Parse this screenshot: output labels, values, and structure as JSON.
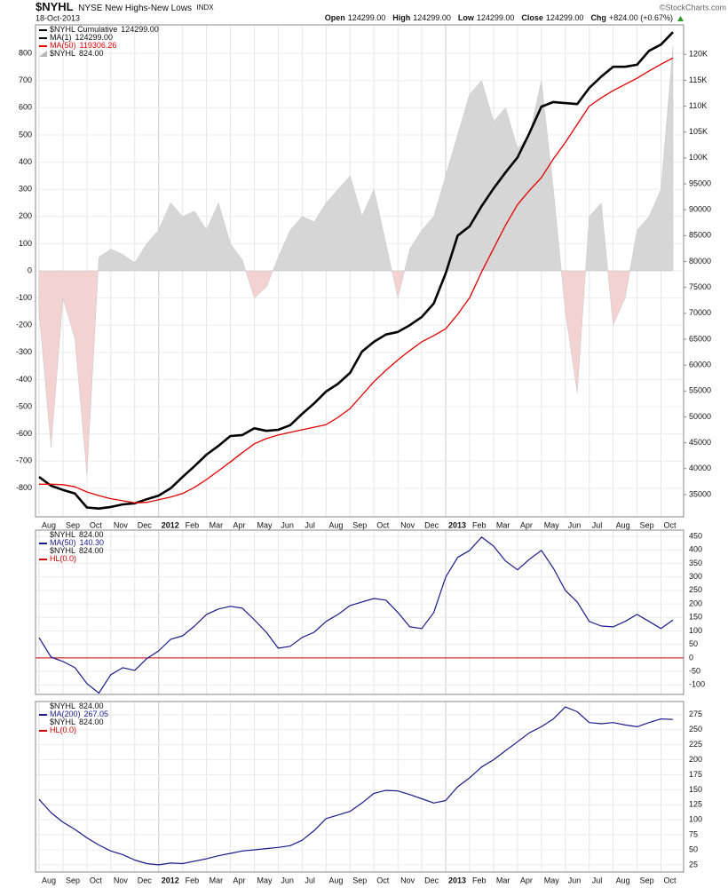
{
  "header": {
    "symbol": "$NYHL",
    "name": "NYSE New Highs-New Lows",
    "exchange": "INDX",
    "date": "18-Oct-2013",
    "watermark": "©StockCharts.com",
    "quote": [
      {
        "label": "Open",
        "value": "124299.00"
      },
      {
        "label": "High",
        "value": "124299.00"
      },
      {
        "label": "Low",
        "value": "124299.00"
      },
      {
        "label": "Close",
        "value": "124299.00"
      },
      {
        "label": "Chg",
        "value": "+824.00 (+0.67%)"
      }
    ]
  },
  "chart_data": [
    {
      "type": "line",
      "title": "$NYHL  Cumulative",
      "title_value": "124299.00",
      "categories": [
        "Aug",
        null,
        "Sep",
        null,
        "Oct",
        null,
        "Nov",
        null,
        "Dec",
        null,
        "2012",
        null,
        "Feb",
        null,
        "Mar",
        null,
        "Apr",
        null,
        "May",
        null,
        "Jun",
        null,
        "Jul",
        null,
        "Aug",
        null,
        "Sep",
        null,
        "Oct",
        null,
        "Nov",
        null,
        "Dec",
        null,
        "2013",
        null,
        "Feb",
        null,
        "Mar",
        null,
        "Apr",
        null,
        "May",
        null,
        "Jun",
        null,
        "Jul",
        null,
        "Aug",
        null,
        "Sep",
        null,
        "Oct",
        null
      ],
      "ylim": [
        -905,
        905
      ],
      "yticks": [
        -800,
        -700,
        -600,
        -500,
        -400,
        -300,
        -200,
        -100,
        0,
        100,
        200,
        300,
        400,
        500,
        600,
        700,
        800
      ],
      "y2lim": [
        30700,
        125700
      ],
      "y2ticks": [
        35000,
        40000,
        45000,
        50000,
        55000,
        60000,
        65000,
        70000,
        75000,
        80000,
        85000,
        90000,
        95000,
        {
          "value": 100000,
          "label": "100K"
        },
        {
          "value": 105000,
          "label": "105K"
        },
        {
          "value": 110000,
          "label": "110K"
        },
        {
          "value": 115000,
          "label": "115K"
        },
        {
          "value": 120000,
          "label": "120K"
        }
      ],
      "grid": true,
      "series": [
        {
          "name": "MA(1)",
          "last": "124299.00",
          "color": "#000000",
          "axis": "y2",
          "width": 2.6,
          "values": [
            38400,
            36700,
            35900,
            35200,
            32500,
            32300,
            32600,
            33100,
            33300,
            34100,
            34800,
            36200,
            38400,
            40500,
            42700,
            44400,
            46300,
            46500,
            47800,
            47300,
            47500,
            48400,
            50600,
            52600,
            54900,
            56400,
            58500,
            62600,
            64500,
            65900,
            66400,
            67700,
            69300,
            71900,
            77700,
            85000,
            86800,
            90700,
            94100,
            97200,
            100100,
            104800,
            109900,
            110800,
            110600,
            110400,
            113500,
            115700,
            117600,
            117600,
            118000,
            120700,
            121900,
            124299
          ]
        },
        {
          "name": "MA(50)",
          "last": "119306.26",
          "color": "#e00000",
          "axis": "y2",
          "width": 1.3,
          "values": [
            37000,
            37000,
            36900,
            36500,
            35500,
            34800,
            34200,
            33800,
            33400,
            33500,
            34000,
            34500,
            35200,
            36400,
            37900,
            39600,
            41300,
            43100,
            44800,
            45800,
            46500,
            47000,
            47500,
            48000,
            48500,
            49900,
            51600,
            54200,
            56800,
            59000,
            61000,
            62800,
            64500,
            65700,
            67000,
            69800,
            73000,
            78000,
            82500,
            87000,
            91000,
            93700,
            96200,
            99800,
            103000,
            106500,
            110000,
            111600,
            113000,
            114200,
            115400,
            116800,
            118100,
            119306.26
          ]
        },
        {
          "name": "$NYHL",
          "last": "824.00",
          "type": "area",
          "color": "#d6d6d6",
          "negative_color": "#f3d2d2",
          "values": [
            -150,
            -650,
            -100,
            -250,
            -750,
            50,
            80,
            60,
            30,
            100,
            150,
            250,
            200,
            220,
            150,
            250,
            100,
            40,
            -100,
            -60,
            50,
            150,
            200,
            180,
            250,
            300,
            350,
            200,
            300,
            100,
            -100,
            80,
            150,
            200,
            350,
            500,
            650,
            700,
            550,
            600,
            450,
            500,
            700,
            300,
            -150,
            -450,
            200,
            250,
            -200,
            -100,
            150,
            200,
            300,
            824
          ]
        }
      ]
    },
    {
      "type": "line",
      "title": "$NYHL",
      "title_value": "824.00",
      "ylim": [
        -135,
        473
      ],
      "yticks": [
        -100,
        -50,
        0,
        50,
        100,
        150,
        200,
        250,
        300,
        350,
        400,
        450
      ],
      "grid": true,
      "series": [
        {
          "name": "MA(50)",
          "last": "140.30",
          "color": "#1a1a8c",
          "width": 1.2,
          "values": [
            75,
            3,
            -13,
            -36,
            -95,
            -130,
            -62,
            -36,
            -46,
            -3,
            26,
            69,
            82,
            118,
            161,
            181,
            191,
            184,
            141,
            95,
            36,
            43,
            76,
            95,
            135,
            161,
            194,
            207,
            220,
            214,
            168,
            115,
            109,
            168,
            299,
            372,
            398,
            447,
            414,
            359,
            326,
            365,
            398,
            332,
            250,
            207,
            135,
            118,
            115,
            135,
            161,
            135,
            109,
            140.3
          ]
        }
      ],
      "overlay": {
        "name": "$NYHL",
        "last": "824.00"
      },
      "hline": {
        "name": "HL(0.0)",
        "value": 0,
        "color": "#cc0000"
      }
    },
    {
      "type": "line",
      "title": "$NYHL",
      "title_value": "824.00",
      "categories": [
        "Aug",
        null,
        "Sep",
        null,
        "Oct",
        null,
        "Nov",
        null,
        "Dec",
        null,
        "2012",
        null,
        "Feb",
        null,
        "Mar",
        null,
        "Apr",
        null,
        "May",
        null,
        "Jun",
        null,
        "Jul",
        null,
        "Aug",
        null,
        "Sep",
        null,
        "Oct",
        null,
        "Nov",
        null,
        "Dec",
        null,
        "2013",
        null,
        "Feb",
        null,
        "Mar",
        null,
        "Apr",
        null,
        "May",
        null,
        "Jun",
        null,
        "Jul",
        null,
        "Aug",
        null,
        "Sep",
        null,
        "Oct",
        null
      ],
      "ylim": [
        13,
        297
      ],
      "yticks": [
        25,
        50,
        75,
        100,
        125,
        150,
        175,
        200,
        225,
        250,
        275
      ],
      "grid": true,
      "series": [
        {
          "name": "MA(200)",
          "last": "267.05",
          "color": "#1a1a8c",
          "width": 1.2,
          "values": [
            134,
            112,
            96,
            84,
            70,
            58,
            48,
            42,
            33,
            27,
            25,
            28,
            27,
            31,
            35,
            40,
            44,
            48,
            50,
            52,
            54,
            57,
            66,
            82,
            102,
            108,
            114,
            128,
            144,
            149,
            148,
            142,
            135,
            128,
            132,
            155,
            170,
            188,
            200,
            215,
            230,
            245,
            255,
            268,
            288,
            280,
            262,
            260,
            262,
            258,
            255,
            262,
            268,
            267.05
          ]
        }
      ],
      "overlay": {
        "name": "$NYHL",
        "last": "824.00"
      },
      "hline": {
        "name": "HL(0.0)",
        "value": 0,
        "color": "#cc0000"
      }
    }
  ]
}
